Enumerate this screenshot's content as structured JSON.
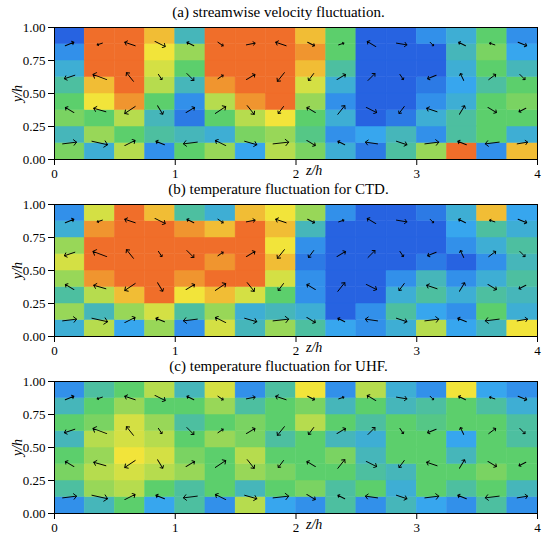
{
  "chart_data": {
    "type": "heatmap",
    "xlabel": "z/h",
    "ylabel": "y/h",
    "xlim": [
      0,
      4
    ],
    "xticks": [
      0,
      1,
      2,
      3,
      4
    ],
    "ylim": [
      0,
      1
    ],
    "yticks": [
      {
        "value": 0,
        "label": "0.00"
      },
      {
        "value": 0.25,
        "label": "0.25"
      },
      {
        "value": 0.5,
        "label": "0.50"
      },
      {
        "value": 0.75,
        "label": "0.75"
      },
      {
        "value": 1,
        "label": "1.00"
      }
    ],
    "clim": [
      -1,
      1
    ],
    "z_edges": [
      0,
      0.25,
      0.5,
      0.75,
      1,
      1.25,
      1.5,
      1.75,
      2,
      2.25,
      2.5,
      2.75,
      3,
      3.25,
      3.5,
      3.75,
      4
    ],
    "y_edges": [
      0,
      0.125,
      0.25,
      0.375,
      0.5,
      0.625,
      0.75,
      0.875,
      1
    ],
    "panels": [
      {
        "title": "(a) streamwise velocity fluctuation.",
        "values": [
          [
            0.1,
            -0.4,
            0.3,
            -0.6,
            0,
            0.2,
            -0.5,
            0.3,
            0.1,
            -0.4,
            -0.7,
            -0.2,
            0.2,
            0.8,
            -0.6,
            0.6
          ],
          [
            -0.3,
            0.2,
            0,
            -0.2,
            -0.3,
            -0.4,
            0.1,
            0.2,
            -0.1,
            -0.6,
            -0.5,
            -0.3,
            -0.6,
            -0.2,
            0,
            -0.4
          ],
          [
            0.1,
            0,
            0.3,
            -0.3,
            -0.7,
            0,
            0.3,
            0.5,
            0,
            -0.4,
            -0.8,
            -0.7,
            -0.4,
            -0.2,
            0,
            0
          ],
          [
            0,
            0.5,
            0.7,
            0,
            -0.6,
            0.3,
            0.7,
            0.8,
            0.2,
            -0.6,
            -0.8,
            -0.8,
            -0.6,
            -0.4,
            0,
            0.1
          ],
          [
            -0.2,
            0.6,
            0.8,
            0.3,
            -0.3,
            0.7,
            0.8,
            0.8,
            0.4,
            -0.4,
            -0.8,
            -0.8,
            -0.7,
            -0.5,
            -0.2,
            0
          ],
          [
            -0.4,
            0.8,
            0.8,
            0.4,
            0,
            0.8,
            0.8,
            0.8,
            0.6,
            -0.2,
            -0.8,
            -0.8,
            -0.8,
            -0.4,
            0,
            -0.3
          ],
          [
            -0.6,
            0.8,
            0.8,
            0.5,
            0.2,
            0.8,
            0.8,
            0.8,
            0.7,
            0,
            -0.8,
            -0.8,
            -0.8,
            -0.3,
            0.1,
            -0.5
          ],
          [
            -0.8,
            0.8,
            0.8,
            0.6,
            -0.3,
            0.8,
            0.8,
            0.8,
            0.6,
            0,
            -0.8,
            -0.8,
            -0.6,
            -0.4,
            0,
            -0.6
          ]
        ]
      },
      {
        "title": "(b) temperature fluctuation for CTD.",
        "values": [
          [
            -0.4,
            0.3,
            -0.5,
            0.2,
            -0.6,
            0.4,
            -0.3,
            0.2,
            -0.2,
            -0.5,
            -0.6,
            -0.4,
            0.3,
            -0.5,
            -0.3,
            0.5
          ],
          [
            0.2,
            -0.3,
            0.2,
            0.4,
            -0.2,
            0.2,
            -0.4,
            -0.3,
            -0.4,
            -0.8,
            -0.6,
            -0.2,
            -0.5,
            -0.6,
            0,
            -0.4
          ],
          [
            -0.2,
            0.3,
            0.6,
            0.8,
            0.5,
            0.6,
            0.4,
            0,
            -0.6,
            -0.8,
            -0.8,
            -0.4,
            -0.2,
            -0.4,
            -0.2,
            -0.3
          ],
          [
            0.2,
            0.7,
            0.8,
            0.8,
            0.7,
            0.8,
            0.8,
            0.4,
            -0.6,
            -0.8,
            -0.8,
            -0.6,
            -0.3,
            -0.6,
            -0.4,
            -0.2
          ],
          [
            0.4,
            0.8,
            0.8,
            0.8,
            0.8,
            0.7,
            0.8,
            0.6,
            -0.7,
            -0.8,
            -0.8,
            -0.8,
            -0.7,
            -0.8,
            -0.6,
            -0.3
          ],
          [
            0.2,
            0.8,
            0.8,
            0.8,
            0.8,
            0.8,
            0.8,
            0.5,
            -0.6,
            -0.8,
            -0.8,
            -0.8,
            -0.8,
            -0.6,
            -0.4,
            -0.2
          ],
          [
            -0.4,
            0.7,
            0.8,
            0.8,
            0.7,
            0.6,
            0.8,
            0.6,
            -0.3,
            -0.8,
            -0.8,
            -0.8,
            -0.8,
            -0.5,
            -0.2,
            -0.4
          ],
          [
            -0.6,
            0.4,
            0.8,
            0.6,
            -0.2,
            -0.4,
            0.6,
            0.5,
            0.2,
            -0.6,
            -0.8,
            -0.8,
            -0.7,
            -0.4,
            0.6,
            -0.5
          ]
        ]
      },
      {
        "title": "(c) temperature fluctuation for UHF.",
        "values": [
          [
            -0.6,
            -0.3,
            0,
            -0.5,
            -0.2,
            -0.6,
            0.3,
            -0.5,
            -0.6,
            -0.2,
            -0.6,
            -0.3,
            -0.5,
            -0.6,
            -0.2,
            -0.6
          ],
          [
            -0.2,
            0.2,
            0.3,
            0,
            -0.2,
            0,
            -0.3,
            0,
            0.1,
            -0.2,
            0,
            -0.4,
            0,
            -0.2,
            0,
            -0.3
          ],
          [
            0.1,
            0.3,
            0.4,
            0.3,
            0.2,
            0,
            0.2,
            0.1,
            0,
            0,
            -0.2,
            -0.3,
            0,
            0,
            0.1,
            0
          ],
          [
            0,
            0.2,
            0.5,
            0.4,
            0.1,
            0,
            0.3,
            0,
            0,
            0.1,
            -0.3,
            0,
            0,
            -0.3,
            0,
            0
          ],
          [
            -0.3,
            0.3,
            0.4,
            0.3,
            0,
            0.2,
            0.1,
            -0.2,
            0,
            -0.3,
            -0.4,
            0,
            0,
            -0.5,
            0,
            -0.2
          ],
          [
            0,
            0.1,
            0.4,
            0.2,
            -0.2,
            0,
            0.1,
            0,
            0.3,
            0,
            -0.2,
            0,
            -0.1,
            0,
            0,
            -0.2
          ],
          [
            -0.3,
            0,
            0.2,
            0,
            0,
            0.2,
            -0.2,
            0,
            0.1,
            -0.3,
            0,
            -0.3,
            -0.2,
            0,
            -0.2,
            -0.4
          ],
          [
            -0.6,
            -0.2,
            0,
            0.3,
            -0.3,
            0.4,
            -0.6,
            -0.2,
            0.5,
            -0.6,
            0.3,
            -0.4,
            -0.6,
            0.5,
            -0.5,
            -0.6
          ]
        ]
      }
    ],
    "vectors": {
      "z": [
        0.125,
        0.375,
        0.625,
        0.875,
        1.125,
        1.375,
        1.625,
        1.875,
        2.125,
        2.375,
        2.625,
        2.875,
        3.125,
        3.375,
        3.625,
        3.875
      ],
      "y": [
        0.125,
        0.375,
        0.625,
        0.875
      ],
      "w": [
        [
          0.8,
          0.9,
          0.6,
          -0.5,
          -0.8,
          -0.6,
          0.7,
          0.9,
          0.5,
          -0.4,
          -0.7,
          0.6,
          0.8,
          -0.5,
          -0.8,
          0.6
        ],
        [
          -0.5,
          -0.7,
          -0.6,
          0.3,
          0.5,
          0.6,
          0.4,
          -0.3,
          -0.5,
          0.4,
          0.6,
          -0.3,
          -0.6,
          0.3,
          0.5,
          -0.4
        ],
        [
          -0.6,
          -0.8,
          -0.4,
          0.2,
          0.4,
          0.3,
          0.5,
          -0.4,
          -0.3,
          0.5,
          0.4,
          0.2,
          -0.5,
          -0.2,
          0.4,
          0.3
        ],
        [
          0.5,
          -0.3,
          -0.6,
          0.6,
          -0.4,
          0.3,
          0.5,
          -0.6,
          0.4,
          0.3,
          -0.5,
          0.6,
          0.2,
          -0.4,
          -0.3,
          0.5
        ]
      ],
      "v": [
        [
          0.1,
          -0.2,
          0.3,
          0.2,
          -0.1,
          0.3,
          -0.2,
          0.1,
          -0.3,
          0.2,
          0.1,
          -0.2,
          0.1,
          0.2,
          -0.1,
          0.1
        ],
        [
          0.3,
          0.2,
          -0.4,
          -0.5,
          0.3,
          0.4,
          -0.5,
          -0.4,
          0.3,
          0.5,
          -0.3,
          -0.4,
          0.2,
          0.5,
          -0.3,
          -0.2
        ],
        [
          -0.2,
          0.3,
          0.5,
          -0.3,
          -0.4,
          0.2,
          0.3,
          -0.5,
          -0.4,
          0.3,
          0.4,
          -0.3,
          -0.2,
          0.4,
          0.3,
          -0.3
        ],
        [
          0.2,
          -0.1,
          0.2,
          -0.3,
          0.2,
          -0.2,
          0.1,
          0.2,
          -0.2,
          0.1,
          0.3,
          -0.1,
          -0.2,
          0.2,
          0.1,
          -0.2
        ]
      ]
    }
  }
}
